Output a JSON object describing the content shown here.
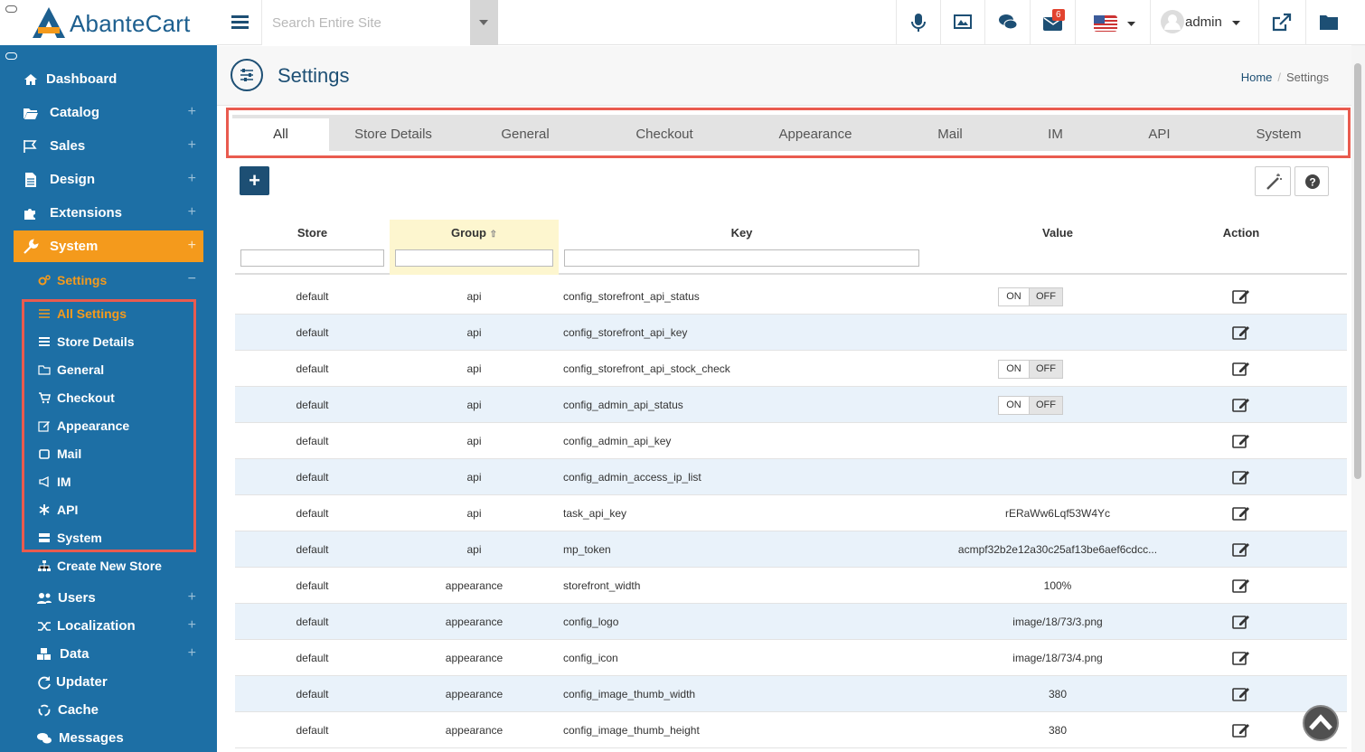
{
  "app": {
    "logo_text": "AbanteCart"
  },
  "topbar": {
    "search_placeholder": "Search Entire Site",
    "mail_count": "6",
    "user_name": "admin"
  },
  "sidebar": {
    "main": [
      {
        "label": "Dashboard",
        "icon": "home-icon"
      },
      {
        "label": "Catalog",
        "icon": "folder-open-icon"
      },
      {
        "label": "Sales",
        "icon": "flag-icon"
      },
      {
        "label": "Design",
        "icon": "file-icon"
      },
      {
        "label": "Extensions",
        "icon": "puzzle-icon"
      },
      {
        "label": "System",
        "icon": "wrench-icon"
      }
    ],
    "settings_label": "Settings",
    "settings_sub": [
      {
        "label": "All Settings",
        "icon": "sliders-icon"
      },
      {
        "label": "Store Details",
        "icon": "list-icon"
      },
      {
        "label": "General",
        "icon": "folder-icon"
      },
      {
        "label": "Checkout",
        "icon": "cart-icon"
      },
      {
        "label": "Appearance",
        "icon": "edit-icon"
      },
      {
        "label": "Mail",
        "icon": "envelope-icon"
      },
      {
        "label": "IM",
        "icon": "bullhorn-icon"
      },
      {
        "label": "API",
        "icon": "asterisk-icon"
      },
      {
        "label": "System",
        "icon": "server-icon"
      }
    ],
    "create_store": "Create New Store",
    "lower": [
      {
        "label": "Users",
        "icon": "users-icon"
      },
      {
        "label": "Localization",
        "icon": "random-icon"
      },
      {
        "label": "Data",
        "icon": "cubes-icon"
      },
      {
        "label": "Updater",
        "icon": "refresh-icon"
      },
      {
        "label": "Cache",
        "icon": "recycle-icon"
      },
      {
        "label": "Messages",
        "icon": "comments-icon"
      }
    ]
  },
  "header": {
    "title": "Settings",
    "breadcrumb_home": "Home",
    "breadcrumb_current": "Settings"
  },
  "tabs": [
    "All",
    "Store Details",
    "General",
    "Checkout",
    "Appearance",
    "Mail",
    "IM",
    "API",
    "System"
  ],
  "grid": {
    "columns": [
      "Store",
      "Group",
      "Key",
      "Value",
      "Action"
    ],
    "toggle_on": "ON",
    "toggle_off": "OFF",
    "rows": [
      {
        "store": "default",
        "group": "api",
        "key": "config_storefront_api_status",
        "value": "",
        "toggle": true
      },
      {
        "store": "default",
        "group": "api",
        "key": "config_storefront_api_key",
        "value": "",
        "toggle": false
      },
      {
        "store": "default",
        "group": "api",
        "key": "config_storefront_api_stock_check",
        "value": "",
        "toggle": true
      },
      {
        "store": "default",
        "group": "api",
        "key": "config_admin_api_status",
        "value": "",
        "toggle": true
      },
      {
        "store": "default",
        "group": "api",
        "key": "config_admin_api_key",
        "value": "",
        "toggle": false
      },
      {
        "store": "default",
        "group": "api",
        "key": "config_admin_access_ip_list",
        "value": "",
        "toggle": false
      },
      {
        "store": "default",
        "group": "api",
        "key": "task_api_key",
        "value": "rERaWw6Lqf53W4Yc",
        "toggle": false
      },
      {
        "store": "default",
        "group": "api",
        "key": "mp_token",
        "value": "acmpf32b2e12a30c25af13be6aef6cdcc...",
        "toggle": false
      },
      {
        "store": "default",
        "group": "appearance",
        "key": "storefront_width",
        "value": "100%",
        "toggle": false
      },
      {
        "store": "default",
        "group": "appearance",
        "key": "config_logo",
        "value": "image/18/73/3.png",
        "toggle": false
      },
      {
        "store": "default",
        "group": "appearance",
        "key": "config_icon",
        "value": "image/18/73/4.png",
        "toggle": false
      },
      {
        "store": "default",
        "group": "appearance",
        "key": "config_image_thumb_width",
        "value": "380",
        "toggle": false
      },
      {
        "store": "default",
        "group": "appearance",
        "key": "config_image_thumb_height",
        "value": "380",
        "toggle": false
      }
    ]
  }
}
